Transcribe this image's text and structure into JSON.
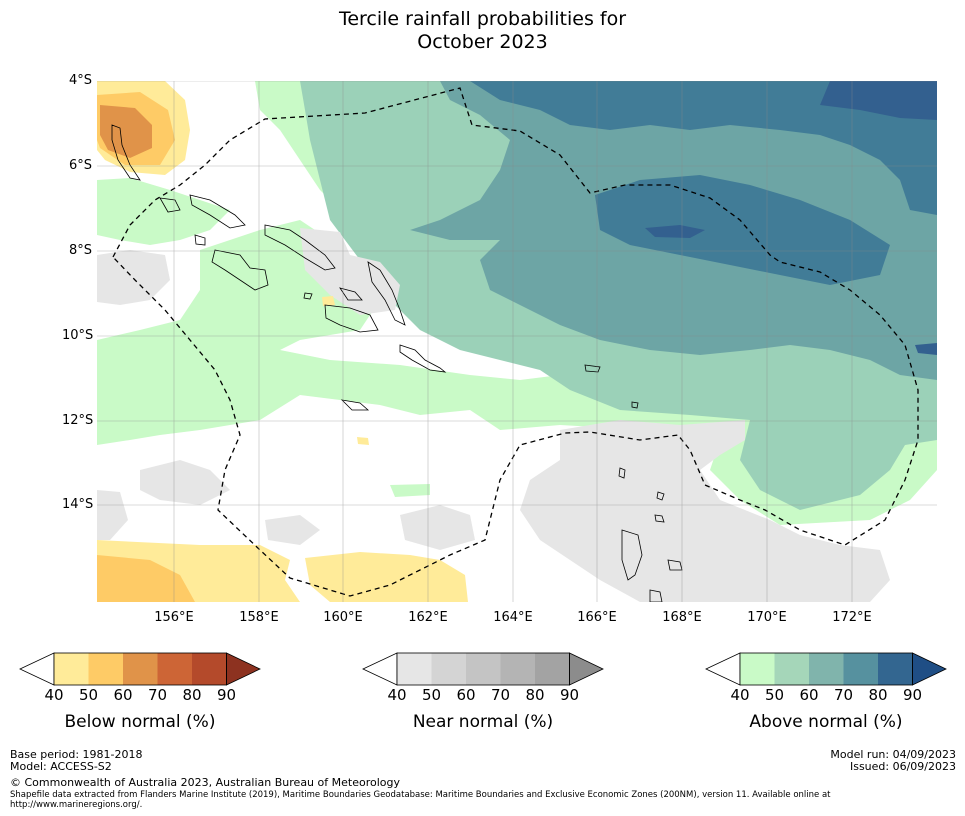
{
  "title": {
    "line1": "Tercile rainfall probabilities for",
    "line2": "October 2023"
  },
  "map": {
    "lat_labels": [
      "4°S",
      "6°S",
      "8°S",
      "10°S",
      "12°S",
      "14°S"
    ],
    "lon_labels": [
      "156°E",
      "158°E",
      "160°E",
      "162°E",
      "164°E",
      "166°E",
      "168°E",
      "170°E",
      "172°E"
    ],
    "lat_range": [
      -16.2,
      -4.0
    ],
    "lon_range": [
      154.2,
      174.0
    ],
    "projection": "equirectangular",
    "grid": true,
    "region_colors": {
      "below_40_50": "#ffeb99",
      "below_50_60": "#fecb66",
      "below_60_70": "#e09349",
      "near_40_50": "#e6e6e6",
      "above_40_50": "#c9fac7",
      "above_50_60": "#9bd1b8",
      "above_60_70": "#6da5a5",
      "above_70_80": "#417c97",
      "above_80_90": "#33608f"
    }
  },
  "colorbars": [
    {
      "title": "Below normal (%)",
      "ticks": [
        "40",
        "50",
        "60",
        "70",
        "80",
        "90"
      ],
      "colors": [
        "#ffeb99",
        "#fecb66",
        "#e09349",
        "#cd6536",
        "#b44a2b",
        "#8d3220"
      ]
    },
    {
      "title": "Near normal (%)",
      "ticks": [
        "40",
        "50",
        "60",
        "70",
        "80",
        "90"
      ],
      "colors": [
        "#e6e6e6",
        "#d4d4d4",
        "#c4c4c4",
        "#b4b4b4",
        "#a3a3a3",
        "#8c8c8c"
      ]
    },
    {
      "title": "Above normal (%)",
      "ticks": [
        "40",
        "50",
        "60",
        "70",
        "80",
        "90"
      ],
      "colors": [
        "#c9fac7",
        "#a5d6b9",
        "#80b4ac",
        "#56919f",
        "#336690",
        "#1f4e85"
      ]
    }
  ],
  "footer": {
    "base_period": "Base period: 1981-2018",
    "model": "Model: ACCESS-S2",
    "model_run": "Model run: 04/09/2023",
    "issued": "Issued: 06/09/2023",
    "copyright": "© Commonwealth of Australia 2023, Australian Bureau of Meteorology",
    "shapefile_line1": "Shapefile data extracted from Flanders Marine Institute (2019), Maritime Boundaries Geodatabase: Maritime Boundaries and Exclusive Economic Zones (200NM), version 11. Available online at",
    "shapefile_line2": "http://www.marineregions.org/."
  }
}
